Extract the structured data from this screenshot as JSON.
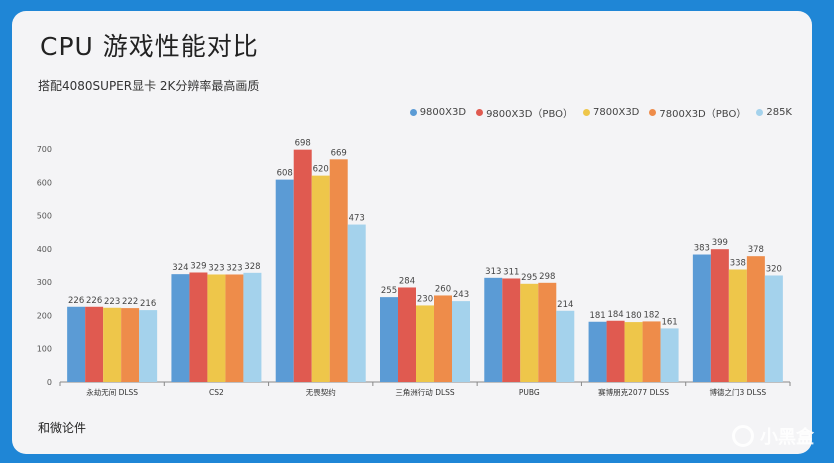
{
  "chart_data": {
    "type": "bar",
    "title": "CPU 游戏性能对比",
    "subtitle": "搭配4080SUPER显卡 2K分辨率最高画质",
    "source": "和微论件",
    "ylim": [
      0,
      700
    ],
    "yticks": [
      0,
      100,
      200,
      300,
      400,
      500,
      600,
      700
    ],
    "grid": false,
    "legend_position": "top-right",
    "categories": [
      "永劫无间 DLSS",
      "CS2",
      "无畏契约",
      "三角洲行动 DLSS",
      "PUBG",
      "赛博朋克2077 DLSS",
      "博德之门3 DLSS"
    ],
    "series": [
      {
        "name": "9800X3D",
        "color": "#5b9bd5",
        "values": [
          226,
          324,
          608,
          255,
          313,
          181,
          383
        ]
      },
      {
        "name": "9800X3D（PBO）",
        "color": "#e05a50",
        "values": [
          226,
          329,
          698,
          284,
          311,
          184,
          399
        ]
      },
      {
        "name": "7800X3D",
        "color": "#eec64a",
        "values": [
          223,
          323,
          620,
          230,
          295,
          180,
          338
        ]
      },
      {
        "name": "7800X3D（PBO）",
        "color": "#ee8c4a",
        "values": [
          222,
          323,
          669,
          260,
          298,
          182,
          378
        ]
      },
      {
        "name": "285K",
        "color": "#a4d2ec",
        "values": [
          216,
          328,
          473,
          243,
          214,
          161,
          320
        ]
      }
    ]
  },
  "watermark": {
    "text": "小黑盒",
    "icon": "heybox-logo-icon"
  }
}
